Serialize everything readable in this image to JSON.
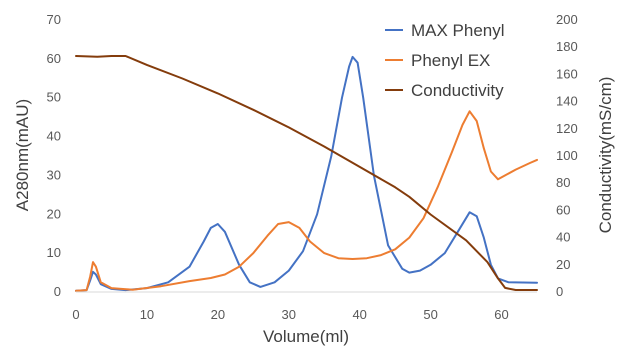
{
  "chart_data": {
    "type": "line",
    "xlabel": "Volume(ml)",
    "ylabel_left": "A280nm(mAU)",
    "ylabel_right": "Conductivity(mS/cm)",
    "xlim": [
      0,
      65
    ],
    "ylim_left": [
      0,
      70
    ],
    "ylim_right": [
      0,
      200
    ],
    "x_ticks": [
      "0",
      "10",
      "20",
      "30",
      "40",
      "50",
      "60"
    ],
    "y_left_ticks": [
      "0",
      "10",
      "20",
      "30",
      "40",
      "50",
      "60",
      "70"
    ],
    "y_right_ticks": [
      "0",
      "20",
      "40",
      "60",
      "80",
      "100",
      "120",
      "140",
      "160",
      "180",
      "200"
    ],
    "grid": false,
    "legend_position": "top-right",
    "series": [
      {
        "name": "MAX Phenyl",
        "axis": "left",
        "color": "#4472C4",
        "points": [
          [
            0,
            0.3
          ],
          [
            1.5,
            0.5
          ],
          [
            2,
            3
          ],
          [
            2.4,
            5.2
          ],
          [
            2.8,
            4.5
          ],
          [
            3.5,
            2
          ],
          [
            5,
            0.8
          ],
          [
            7,
            0.5
          ],
          [
            10,
            1
          ],
          [
            13,
            2.5
          ],
          [
            16,
            6.5
          ],
          [
            18,
            13
          ],
          [
            19,
            16.5
          ],
          [
            20,
            17.5
          ],
          [
            21,
            15.5
          ],
          [
            23,
            7
          ],
          [
            24.5,
            2.5
          ],
          [
            26,
            1.3
          ],
          [
            28,
            2.5
          ],
          [
            30,
            5.5
          ],
          [
            32,
            10.5
          ],
          [
            34,
            20
          ],
          [
            36,
            35
          ],
          [
            37.5,
            50
          ],
          [
            38.5,
            58
          ],
          [
            39,
            60.5
          ],
          [
            39.7,
            59
          ],
          [
            40.5,
            50
          ],
          [
            42,
            30
          ],
          [
            44,
            12
          ],
          [
            46,
            6
          ],
          [
            47,
            5
          ],
          [
            48.5,
            5.5
          ],
          [
            50,
            7
          ],
          [
            52,
            10
          ],
          [
            54,
            16
          ],
          [
            55.5,
            20.5
          ],
          [
            56.5,
            19.5
          ],
          [
            57.5,
            14
          ],
          [
            58.5,
            7
          ],
          [
            59.5,
            3.5
          ],
          [
            61,
            2.5
          ],
          [
            65,
            2.4
          ]
        ]
      },
      {
        "name": "Phenyl EX",
        "axis": "left",
        "color": "#ED7D31",
        "points": [
          [
            0,
            0.3
          ],
          [
            1.5,
            0.5
          ],
          [
            2,
            4
          ],
          [
            2.4,
            7.7
          ],
          [
            2.8,
            6.5
          ],
          [
            3.5,
            2.5
          ],
          [
            5,
            1
          ],
          [
            8,
            0.6
          ],
          [
            12,
            1.5
          ],
          [
            16,
            2.8
          ],
          [
            19,
            3.6
          ],
          [
            21,
            4.5
          ],
          [
            23,
            6.5
          ],
          [
            25,
            10
          ],
          [
            27,
            14.5
          ],
          [
            28.5,
            17.5
          ],
          [
            30,
            18
          ],
          [
            31.5,
            16.5
          ],
          [
            33,
            13
          ],
          [
            35,
            10
          ],
          [
            37,
            8.7
          ],
          [
            39,
            8.5
          ],
          [
            41,
            8.7
          ],
          [
            43,
            9.5
          ],
          [
            45,
            11
          ],
          [
            47,
            14
          ],
          [
            49,
            19
          ],
          [
            51,
            27
          ],
          [
            53,
            36
          ],
          [
            54.5,
            43
          ],
          [
            55.5,
            46.5
          ],
          [
            56.5,
            44
          ],
          [
            57.5,
            37
          ],
          [
            58.5,
            31
          ],
          [
            59.5,
            29
          ],
          [
            60.5,
            30
          ],
          [
            62,
            31.5
          ],
          [
            64,
            33.2
          ],
          [
            65,
            34
          ]
        ]
      },
      {
        "name": "Conductivity",
        "axis": "right",
        "color": "#843C0C",
        "points": [
          [
            0,
            173.5
          ],
          [
            3,
            173
          ],
          [
            5,
            173.5
          ],
          [
            7,
            173.5
          ],
          [
            10,
            167
          ],
          [
            15,
            157
          ],
          [
            20,
            146
          ],
          [
            25,
            134
          ],
          [
            30,
            121
          ],
          [
            35,
            107
          ],
          [
            40,
            92
          ],
          [
            45,
            77
          ],
          [
            47,
            70
          ],
          [
            50,
            57
          ],
          [
            55,
            38
          ],
          [
            58,
            22
          ],
          [
            59.5,
            10
          ],
          [
            60.5,
            3
          ],
          [
            62,
            1.5
          ],
          [
            65,
            1.5
          ]
        ]
      }
    ]
  }
}
